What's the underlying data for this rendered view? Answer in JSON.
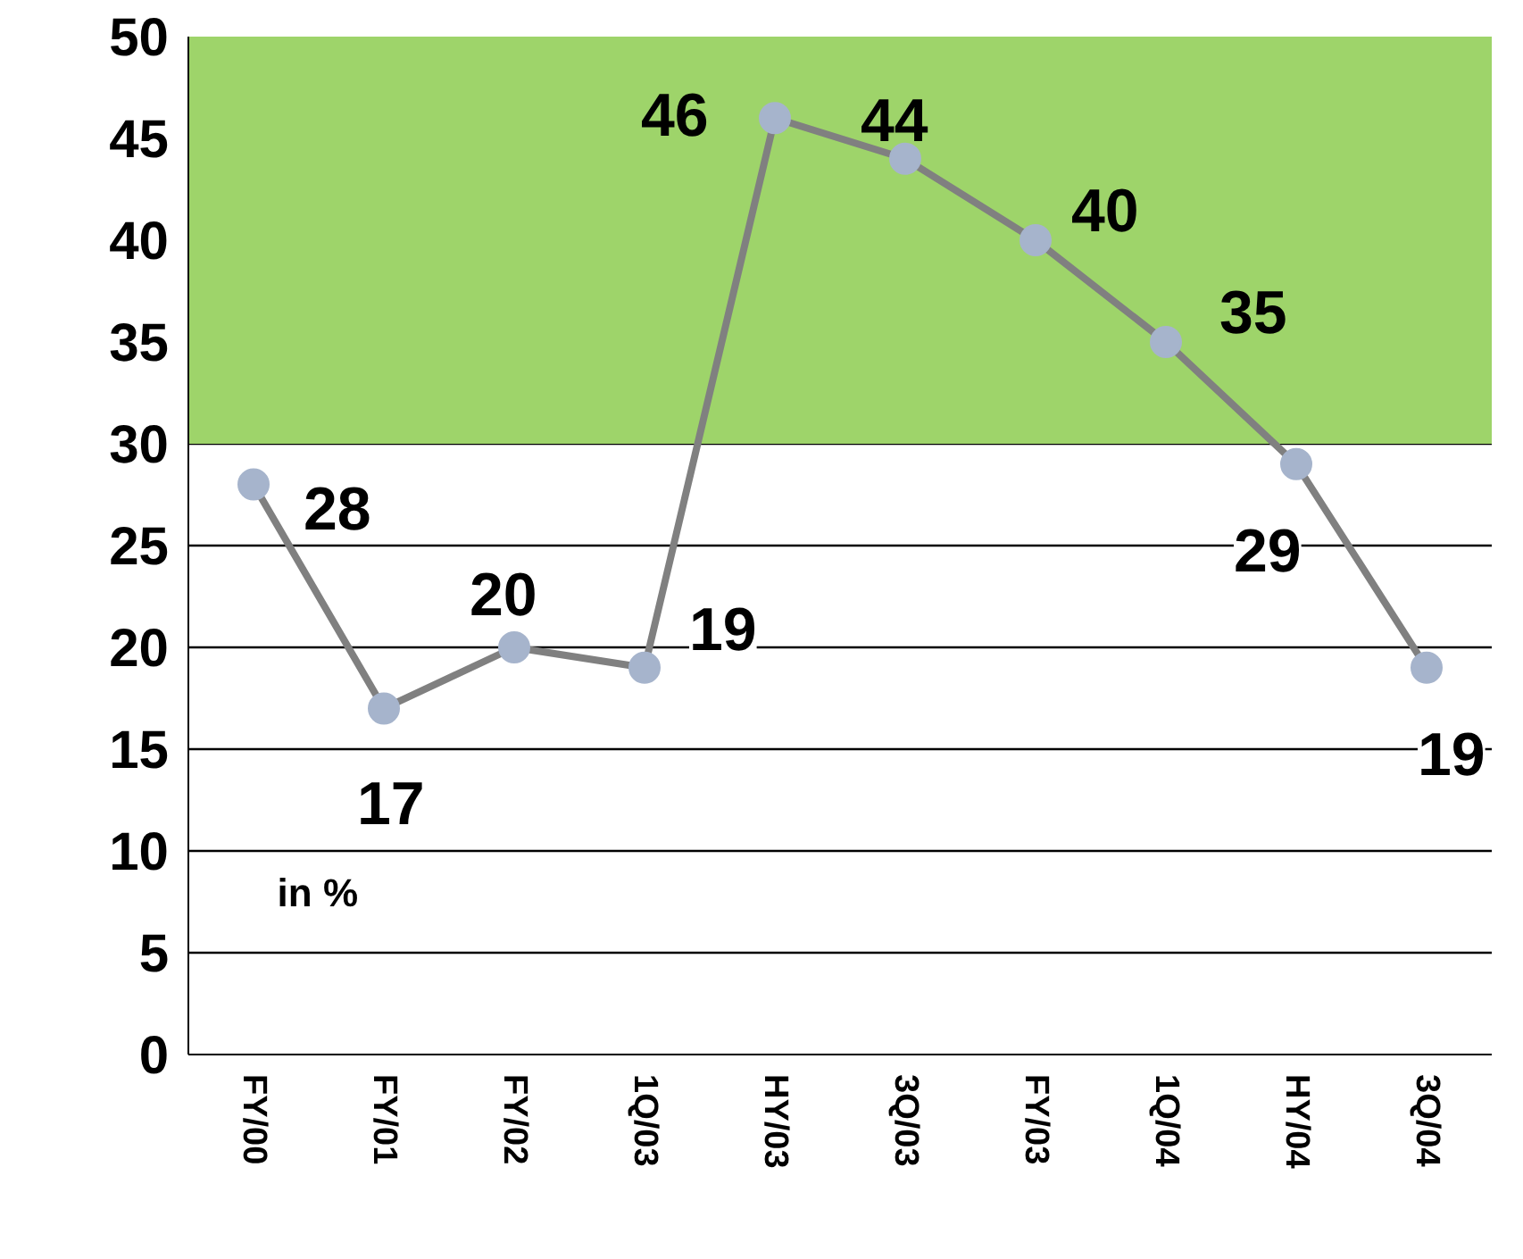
{
  "chart_data": {
    "type": "line",
    "categories": [
      "FY/00",
      "FY/01",
      "FY/02",
      "1Q/03",
      "HY/03",
      "3Q/03",
      "FY/03",
      "1Q/04",
      "HY/04",
      "3Q/04"
    ],
    "series": [
      {
        "color": "#808080",
        "values": [
          28,
          17,
          20,
          19,
          46,
          44,
          40,
          35,
          29,
          19
        ]
      }
    ],
    "marker": "circle",
    "data_labels": true,
    "ylim": [
      0,
      50
    ],
    "yticks": [
      0,
      5,
      10,
      15,
      20,
      25,
      30,
      35,
      40,
      45,
      50
    ],
    "grid": "y",
    "bands": [
      {
        "axis": "y",
        "from": 30,
        "to": 50,
        "color": "#9ed46a"
      }
    ],
    "annotations": [
      "in %"
    ]
  }
}
